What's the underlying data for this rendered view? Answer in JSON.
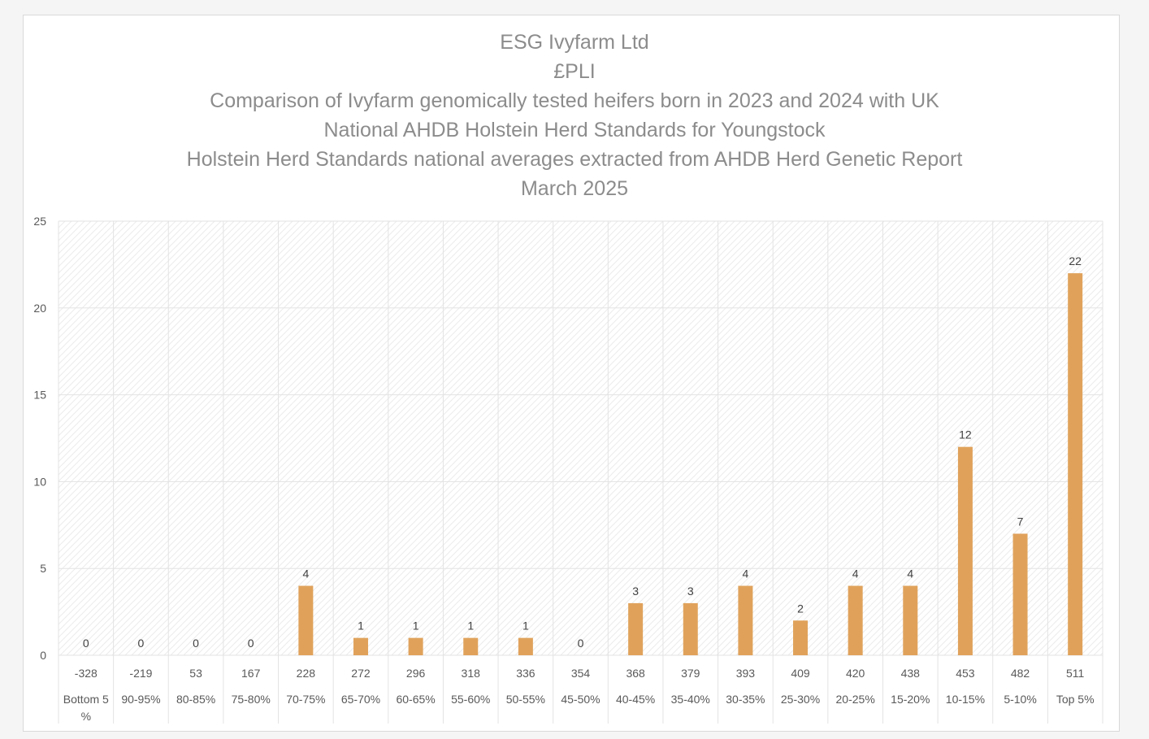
{
  "chart_data": {
    "type": "bar",
    "title_lines": [
      "ESG Ivyfarm Ltd",
      "£PLI",
      "Comparison of Ivyfarm genomically tested heifers born in 2023 and 2024 with UK",
      "National AHDB Holstein Herd Standards for Youngstock",
      "Holstein Herd Standards national averages extracted from AHDB Herd Genetic Report",
      "March 2025"
    ],
    "categories": [
      "-328",
      "-219",
      "53",
      "167",
      "228",
      "272",
      "296",
      "318",
      "336",
      "354",
      "368",
      "379",
      "393",
      "409",
      "420",
      "438",
      "453",
      "482",
      "511"
    ],
    "category_groups": [
      [
        "Bottom 5",
        "%"
      ],
      [
        "90-95%"
      ],
      [
        "80-85%"
      ],
      [
        "75-80%"
      ],
      [
        "70-75%"
      ],
      [
        "65-70%"
      ],
      [
        "60-65%"
      ],
      [
        "55-60%"
      ],
      [
        "50-55%"
      ],
      [
        "45-50%"
      ],
      [
        "40-45%"
      ],
      [
        "35-40%"
      ],
      [
        "30-35%"
      ],
      [
        "25-30%"
      ],
      [
        "20-25%"
      ],
      [
        "15-20%"
      ],
      [
        "10-15%"
      ],
      [
        "5-10%"
      ],
      [
        "Top 5%"
      ]
    ],
    "values": [
      0,
      0,
      0,
      0,
      4,
      1,
      1,
      1,
      1,
      0,
      3,
      3,
      4,
      2,
      4,
      4,
      12,
      7,
      22
    ],
    "ylim": [
      0,
      25
    ],
    "yticks": [
      0,
      5,
      10,
      15,
      20,
      25
    ],
    "bar_color": "#E0A25B",
    "grid": true,
    "legend": "none"
  }
}
